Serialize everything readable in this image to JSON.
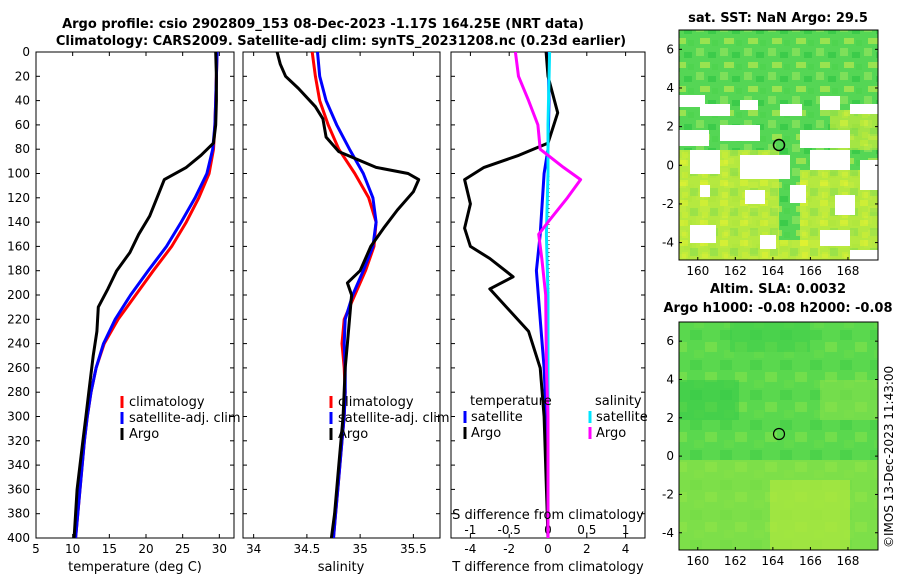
{
  "title": {
    "line1": "Argo profile: csio 2902809_153 08-Dec-2023 -1.17S 164.25E (NRT data)",
    "line2": "Climatology: CARS2009. Satellite-adj clim: synTS_20231208.nc (0.23d earlier)"
  },
  "watermark": "©IMOS 13-Dec-2023 11:43:00",
  "colors": {
    "climatology": "#ff0000",
    "satellite": "#0000ff",
    "argo": "#000000",
    "s_satellite": "#00e5ff",
    "s_argo": "#ff00ff"
  },
  "chart_data": [
    {
      "type": "line",
      "id": "temperature",
      "xlabel": "temperature (deg C)",
      "ylabel": "",
      "xlim": [
        5,
        32
      ],
      "ylim": [
        400,
        0
      ],
      "xticks": [
        "5",
        "10",
        "15",
        "20",
        "25",
        "30"
      ],
      "yticks": [
        "0",
        "20",
        "40",
        "60",
        "80",
        "100",
        "120",
        "140",
        "160",
        "180",
        "200",
        "220",
        "240",
        "260",
        "280",
        "300",
        "320",
        "340",
        "360",
        "380",
        "400"
      ],
      "legend": [
        "climatology",
        "satellite-adj. clim",
        "Argo"
      ],
      "series": [
        {
          "name": "climatology",
          "color": "#ff0000",
          "points": [
            [
              29.7,
              0
            ],
            [
              29.6,
              20
            ],
            [
              29.5,
              40
            ],
            [
              29.4,
              60
            ],
            [
              29.2,
              80
            ],
            [
              28.6,
              100
            ],
            [
              27.2,
              120
            ],
            [
              25.5,
              140
            ],
            [
              23.5,
              160
            ],
            [
              21.0,
              180
            ],
            [
              18.6,
              200
            ],
            [
              16.2,
              220
            ],
            [
              14.3,
              240
            ],
            [
              13.2,
              260
            ],
            [
              12.5,
              280
            ],
            [
              12.0,
              300
            ],
            [
              11.6,
              320
            ],
            [
              11.3,
              340
            ],
            [
              11.0,
              360
            ],
            [
              10.7,
              380
            ],
            [
              10.4,
              400
            ]
          ]
        },
        {
          "name": "satellite-adj. clim",
          "color": "#0000ff",
          "points": [
            [
              29.7,
              0
            ],
            [
              29.6,
              20
            ],
            [
              29.5,
              40
            ],
            [
              29.4,
              60
            ],
            [
              29.1,
              80
            ],
            [
              28.3,
              100
            ],
            [
              26.7,
              120
            ],
            [
              24.8,
              140
            ],
            [
              22.8,
              160
            ],
            [
              20.3,
              180
            ],
            [
              17.9,
              200
            ],
            [
              15.8,
              220
            ],
            [
              14.2,
              240
            ],
            [
              13.2,
              260
            ],
            [
              12.5,
              280
            ],
            [
              12.0,
              300
            ],
            [
              11.6,
              320
            ],
            [
              11.3,
              340
            ],
            [
              11.0,
              360
            ],
            [
              10.7,
              380
            ],
            [
              10.4,
              400
            ]
          ]
        },
        {
          "name": "Argo",
          "color": "#000000",
          "points": [
            [
              29.5,
              0
            ],
            [
              29.6,
              20
            ],
            [
              29.6,
              40
            ],
            [
              29.5,
              60
            ],
            [
              29.2,
              75
            ],
            [
              27.5,
              85
            ],
            [
              25.5,
              95
            ],
            [
              22.5,
              105
            ],
            [
              21.5,
              120
            ],
            [
              20.5,
              135
            ],
            [
              19.0,
              150
            ],
            [
              17.8,
              165
            ],
            [
              16.0,
              180
            ],
            [
              15.2,
              190
            ],
            [
              14.8,
              195
            ],
            [
              13.5,
              210
            ],
            [
              13.3,
              230
            ],
            [
              12.8,
              250
            ],
            [
              12.2,
              280
            ],
            [
              11.8,
              300
            ],
            [
              11.4,
              320
            ],
            [
              11.0,
              340
            ],
            [
              10.6,
              360
            ],
            [
              10.4,
              380
            ],
            [
              10.2,
              400
            ]
          ]
        }
      ]
    },
    {
      "type": "line",
      "id": "salinity",
      "xlabel": "salinity",
      "xlim": [
        33.9,
        35.75
      ],
      "ylim": [
        400,
        0
      ],
      "xticks": [
        "34",
        "34.5",
        "35",
        "35.5"
      ],
      "legend": [
        "climatology",
        "satellite-adj. clim",
        "Argo"
      ],
      "series": [
        {
          "name": "climatology",
          "color": "#ff0000",
          "points": [
            [
              34.55,
              0
            ],
            [
              34.58,
              20
            ],
            [
              34.62,
              40
            ],
            [
              34.7,
              60
            ],
            [
              34.8,
              80
            ],
            [
              34.95,
              100
            ],
            [
              35.08,
              120
            ],
            [
              35.15,
              140
            ],
            [
              35.13,
              160
            ],
            [
              35.05,
              180
            ],
            [
              34.95,
              200
            ],
            [
              34.85,
              220
            ],
            [
              34.83,
              240
            ],
            [
              34.85,
              260
            ],
            [
              34.86,
              280
            ],
            [
              34.85,
              300
            ],
            [
              34.83,
              320
            ],
            [
              34.81,
              340
            ],
            [
              34.79,
              360
            ],
            [
              34.77,
              380
            ],
            [
              34.75,
              400
            ]
          ]
        },
        {
          "name": "satellite-adj. clim",
          "color": "#0000ff",
          "points": [
            [
              34.6,
              0
            ],
            [
              34.62,
              20
            ],
            [
              34.68,
              40
            ],
            [
              34.78,
              60
            ],
            [
              34.9,
              80
            ],
            [
              35.03,
              100
            ],
            [
              35.12,
              120
            ],
            [
              35.15,
              140
            ],
            [
              35.12,
              160
            ],
            [
              35.03,
              180
            ],
            [
              34.93,
              200
            ],
            [
              34.86,
              220
            ],
            [
              34.85,
              240
            ],
            [
              34.86,
              260
            ],
            [
              34.86,
              280
            ],
            [
              34.85,
              300
            ],
            [
              34.83,
              320
            ],
            [
              34.81,
              340
            ],
            [
              34.79,
              360
            ],
            [
              34.77,
              380
            ],
            [
              34.75,
              400
            ]
          ]
        },
        {
          "name": "Argo",
          "color": "#000000",
          "points": [
            [
              34.22,
              0
            ],
            [
              34.25,
              10
            ],
            [
              34.3,
              20
            ],
            [
              34.42,
              30
            ],
            [
              34.58,
              45
            ],
            [
              34.65,
              55
            ],
            [
              34.68,
              70
            ],
            [
              34.8,
              82
            ],
            [
              35.15,
              95
            ],
            [
              35.45,
              100
            ],
            [
              35.55,
              105
            ],
            [
              35.5,
              115
            ],
            [
              35.35,
              130
            ],
            [
              35.22,
              145
            ],
            [
              35.1,
              160
            ],
            [
              35.05,
              170
            ],
            [
              35.0,
              180
            ],
            [
              34.88,
              190
            ],
            [
              34.92,
              200
            ],
            [
              34.9,
              220
            ],
            [
              34.88,
              240
            ],
            [
              34.86,
              260
            ],
            [
              34.84,
              300
            ],
            [
              34.8,
              340
            ],
            [
              34.76,
              380
            ],
            [
              34.73,
              400
            ]
          ]
        }
      ]
    },
    {
      "type": "line",
      "id": "differences",
      "xlabel": "T difference from climatology",
      "xlabel_top": "S difference from climatology",
      "xlim": [
        -5,
        5
      ],
      "ylim": [
        400,
        0
      ],
      "xticks_bottom": [
        "-4",
        "-2",
        "0",
        "2",
        "4"
      ],
      "xticks_top": [
        "-1",
        "-0.5",
        "0",
        "0.5",
        "1"
      ],
      "legend_left_title": "temperature",
      "legend_right_title": "salinity",
      "legend": [
        "satellite",
        "Argo",
        "satellite",
        "Argo"
      ],
      "series": [
        {
          "name": "T satellite",
          "axis": "T",
          "color": "#0000ff",
          "points": [
            [
              0.0,
              0
            ],
            [
              0.05,
              40
            ],
            [
              0.0,
              80
            ],
            [
              -0.2,
              100
            ],
            [
              -0.4,
              150
            ],
            [
              -0.6,
              180
            ],
            [
              -0.5,
              200
            ],
            [
              -0.4,
              220
            ],
            [
              -0.2,
              260
            ],
            [
              -0.1,
              300
            ],
            [
              0.0,
              400
            ]
          ]
        },
        {
          "name": "T Argo",
          "axis": "T",
          "color": "#000000",
          "points": [
            [
              -0.1,
              0
            ],
            [
              0.0,
              20
            ],
            [
              0.5,
              50
            ],
            [
              0.0,
              75
            ],
            [
              -1.5,
              85
            ],
            [
              -3.3,
              95
            ],
            [
              -4.3,
              105
            ],
            [
              -4.0,
              125
            ],
            [
              -4.3,
              145
            ],
            [
              -4.0,
              160
            ],
            [
              -3.0,
              170
            ],
            [
              -1.8,
              185
            ],
            [
              -3.0,
              195
            ],
            [
              -1.0,
              230
            ],
            [
              -0.4,
              260
            ],
            [
              -0.2,
              300
            ],
            [
              0.0,
              400
            ]
          ]
        },
        {
          "name": "S satellite",
          "axis": "S",
          "color": "#00e5ff",
          "points": [
            [
              0.02,
              0
            ],
            [
              0.0,
              60
            ],
            [
              0.0,
              100
            ],
            [
              -0.02,
              150
            ],
            [
              0.0,
              200
            ],
            [
              0.0,
              300
            ],
            [
              0.0,
              400
            ]
          ]
        },
        {
          "name": "S Argo",
          "axis": "S",
          "color": "#ff00ff",
          "points": [
            [
              -0.42,
              0
            ],
            [
              -0.38,
              20
            ],
            [
              -0.25,
              40
            ],
            [
              -0.13,
              60
            ],
            [
              -0.1,
              80
            ],
            [
              0.2,
              95
            ],
            [
              0.42,
              105
            ],
            [
              0.25,
              120
            ],
            [
              0.0,
              140
            ],
            [
              -0.12,
              150
            ],
            [
              -0.08,
              170
            ],
            [
              -0.03,
              200
            ],
            [
              -0.02,
              260
            ],
            [
              0.0,
              300
            ],
            [
              0.0,
              400
            ]
          ]
        }
      ]
    }
  ],
  "maps": [
    {
      "id": "sst",
      "title": "sat. SST: NaN Argo: 29.5",
      "xticks": [
        "160",
        "162",
        "164",
        "166",
        "168"
      ],
      "yticks": [
        "6",
        "4",
        "2",
        "0",
        "-2",
        "-4"
      ],
      "xlim": [
        159,
        169.6
      ],
      "ylim": [
        -4.9,
        7.0
      ],
      "argo_position": {
        "lon": 164.25,
        "lat": 1.17
      }
    },
    {
      "id": "sla",
      "title_line1": "Altim. SLA: 0.0032",
      "title_line2": "Argo h1000: -0.08 h2000: -0.08",
      "xticks": [
        "160",
        "162",
        "164",
        "166",
        "168"
      ],
      "yticks": [
        "6",
        "4",
        "2",
        "0",
        "-2",
        "-4"
      ],
      "xlim": [
        159,
        169.6
      ],
      "ylim": [
        -4.9,
        7.0
      ],
      "argo_position": {
        "lon": 164.25,
        "lat": 1.17
      }
    }
  ]
}
